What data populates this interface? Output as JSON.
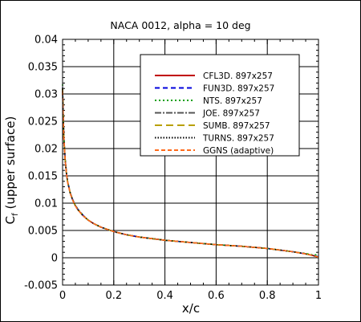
{
  "chart_data": {
    "type": "line",
    "title": "NACA 0012, alpha = 10 deg",
    "xlabel": "x/c",
    "ylabel_main": "C",
    "ylabel_sub": "f",
    "ylabel_rest": " (upper surface)",
    "xlim": [
      0,
      1
    ],
    "ylim": [
      -0.005,
      0.04
    ],
    "x_ticks": [
      0,
      0.2,
      0.4,
      0.6,
      0.8,
      1
    ],
    "x_tick_labels": [
      "0",
      "0.2",
      "0.4",
      "0.6",
      "0.8",
      "1"
    ],
    "y_ticks": [
      -0.005,
      0,
      0.005,
      0.01,
      0.015,
      0.02,
      0.025,
      0.03,
      0.035,
      0.04
    ],
    "y_tick_labels": [
      "-0.005",
      "0",
      "0.005",
      "0.01",
      "0.015",
      "0.02",
      "0.025",
      "0.03",
      "0.035",
      "0.04"
    ],
    "grid": true,
    "legend_position": "top-right",
    "x": [
      0,
      0.002,
      0.005,
      0.01,
      0.015,
      0.02,
      0.03,
      0.04,
      0.05,
      0.06,
      0.08,
      0.1,
      0.12,
      0.15,
      0.2,
      0.25,
      0.3,
      0.35,
      0.4,
      0.5,
      0.6,
      0.7,
      0.8,
      0.9,
      0.95,
      0.98,
      1.0
    ],
    "series": [
      {
        "name": "CFL3D. 897x257",
        "color": "#c00000",
        "dash": "solid",
        "values": [
          0.031,
          0.027,
          0.022,
          0.018,
          0.0155,
          0.0138,
          0.0118,
          0.0105,
          0.0095,
          0.0088,
          0.0077,
          0.0069,
          0.0063,
          0.0056,
          0.0048,
          0.0042,
          0.0038,
          0.0035,
          0.0032,
          0.0028,
          0.0024,
          0.0021,
          0.0017,
          0.0011,
          0.0007,
          0.0004,
          0.0001
        ]
      },
      {
        "name": "FUN3D. 897x257",
        "color": "#0000dd",
        "dash": "6,4",
        "values": [
          0.0312,
          0.0271,
          0.0221,
          0.0181,
          0.0156,
          0.0139,
          0.0119,
          0.0106,
          0.0096,
          0.0089,
          0.0078,
          0.0069,
          0.0063,
          0.0056,
          0.0048,
          0.0042,
          0.0038,
          0.0035,
          0.0032,
          0.0028,
          0.0024,
          0.0021,
          0.0017,
          0.0011,
          0.0007,
          0.0004,
          0.0002
        ]
      },
      {
        "name": "NTS. 897x257",
        "color": "#00a000",
        "dash": "2,3",
        "values": [
          0.0318,
          0.0273,
          0.0222,
          0.0181,
          0.0156,
          0.0139,
          0.0119,
          0.0106,
          0.0096,
          0.0089,
          0.0078,
          0.0069,
          0.0063,
          0.0056,
          0.0048,
          0.0042,
          0.0038,
          0.0035,
          0.0032,
          0.0028,
          0.0024,
          0.0021,
          0.0017,
          0.0011,
          0.0008,
          0.0005,
          0.0006
        ]
      },
      {
        "name": "JOE. 897x257",
        "color": "#555555",
        "dash": "8,2,2,2",
        "values": [
          0.0309,
          0.0269,
          0.022,
          0.018,
          0.0155,
          0.0138,
          0.0118,
          0.0105,
          0.0095,
          0.0088,
          0.0077,
          0.0069,
          0.0063,
          0.0056,
          0.0048,
          0.0042,
          0.0038,
          0.0035,
          0.0032,
          0.0028,
          0.0024,
          0.0021,
          0.0017,
          0.0011,
          0.0007,
          0.0004,
          0.0001
        ]
      },
      {
        "name": "SUMB. 897x257",
        "color": "#b8a000",
        "dash": "9,5",
        "values": [
          0.0311,
          0.027,
          0.0221,
          0.018,
          0.0155,
          0.0138,
          0.0118,
          0.0105,
          0.0095,
          0.0088,
          0.0077,
          0.0069,
          0.0063,
          0.0056,
          0.0048,
          0.0042,
          0.0038,
          0.0035,
          0.0032,
          0.0028,
          0.0024,
          0.0021,
          0.0017,
          0.0011,
          0.0007,
          0.0004,
          0.0001
        ]
      },
      {
        "name": "TURNS. 897x257",
        "color": "#000000",
        "dash": "1.5,2",
        "values": [
          0.031,
          0.027,
          0.022,
          0.018,
          0.0155,
          0.0138,
          0.0118,
          0.0105,
          0.0095,
          0.0088,
          0.0077,
          0.0069,
          0.0063,
          0.0056,
          0.0048,
          0.0042,
          0.0038,
          0.0035,
          0.0032,
          0.0028,
          0.0024,
          0.0021,
          0.0017,
          0.0011,
          0.0007,
          0.0004,
          0.0001
        ]
      },
      {
        "name": "GGNS (adaptive)",
        "color": "#ff6a1a",
        "dash": "5,3",
        "values": [
          0.0305,
          0.0268,
          0.0219,
          0.018,
          0.0155,
          0.0138,
          0.0118,
          0.0105,
          0.0095,
          0.0088,
          0.0077,
          0.0069,
          0.0063,
          0.0056,
          0.0048,
          0.0042,
          0.0038,
          0.0035,
          0.0032,
          0.0028,
          0.0024,
          0.0021,
          0.0017,
          0.0011,
          0.0007,
          0.0004,
          0.0001
        ]
      }
    ]
  }
}
